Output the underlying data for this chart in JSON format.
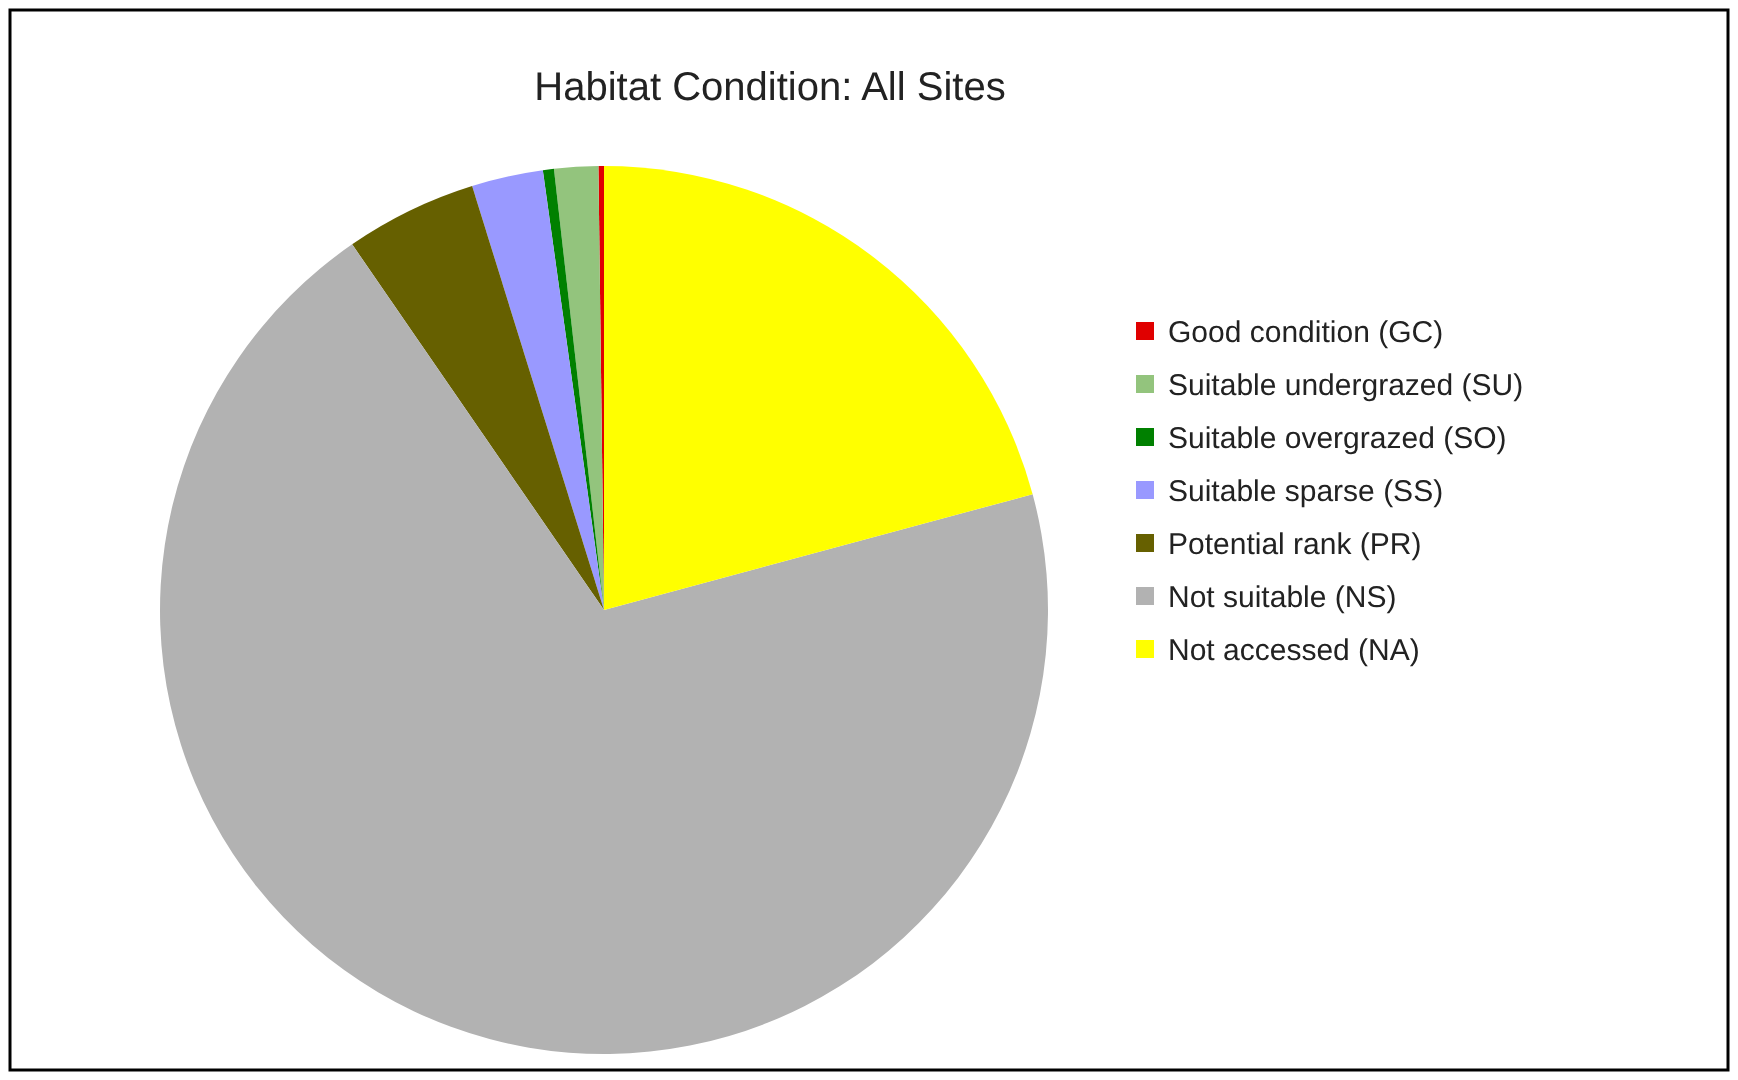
{
  "chart_data": {
    "type": "pie",
    "title": "Habitat Condition: All Sites",
    "categories": [
      "Good condition (GC)",
      "Suitable undergrazed (SU)",
      "Suitable overgrazed (SO)",
      "Suitable sparse (SS)",
      "Potential rank (PR)",
      "Not suitable (NS)",
      "Not accessed (NA)"
    ],
    "values": [
      0.2,
      1.6,
      0.4,
      2.6,
      4.8,
      69.6,
      20.8
    ],
    "colors": [
      "#e00000",
      "#93c47d",
      "#008000",
      "#9999ff",
      "#666000",
      "#b2b2b2",
      "#ffff00"
    ],
    "legend": "right"
  }
}
